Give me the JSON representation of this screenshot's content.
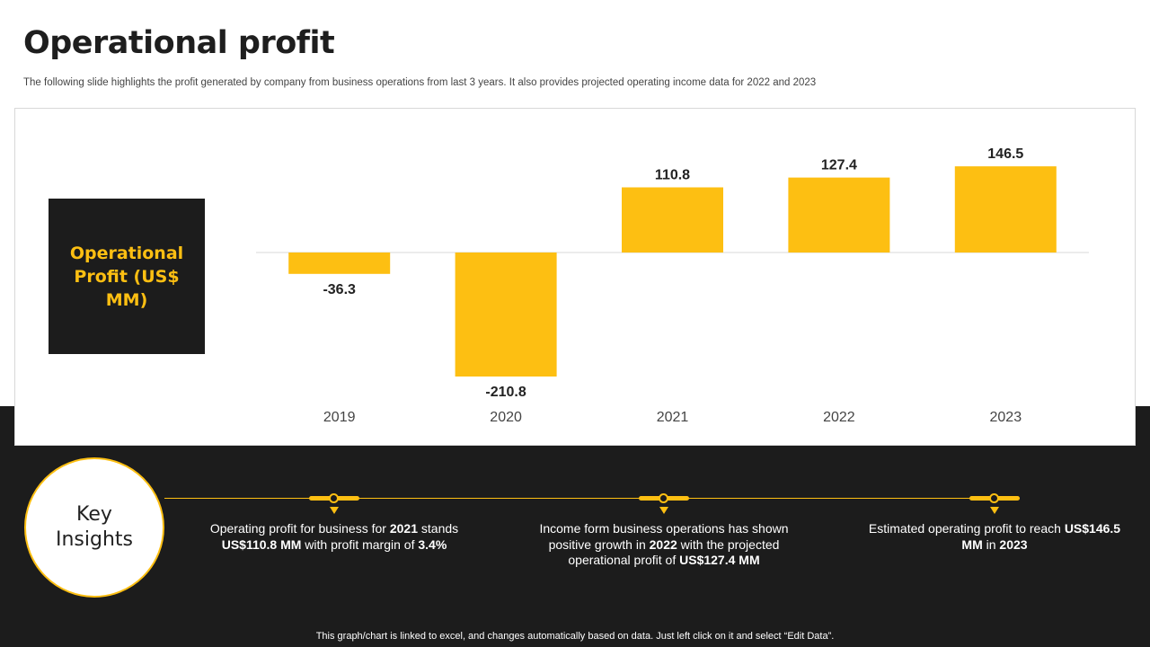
{
  "header": {
    "title": "Operational profit",
    "subtitle": "The following slide highlights the profit generated by  company from business operations from  last 3 years. It also provides projected operating income data for 2022 and 2023"
  },
  "chart_data": {
    "type": "bar",
    "title": "Operational Profit (US$ MM)",
    "categories": [
      "2019",
      "2020",
      "2021",
      "2022",
      "2023"
    ],
    "values": [
      -36.3,
      -210.8,
      110.8,
      127.4,
      146.5
    ],
    "value_labels": [
      "-36.3",
      "-210.8",
      "110.8",
      "127.4",
      "146.5"
    ],
    "xlabel": "",
    "ylabel": "",
    "ylim": [
      -210.8,
      146.5
    ],
    "grid": false,
    "legend": "none",
    "bar_color": "#fdbf12"
  },
  "insights": {
    "heading": "Key Insights",
    "items": [
      {
        "parts": [
          {
            "t": "Operating profit for business for ",
            "b": false
          },
          {
            "t": "2021",
            "b": true
          },
          {
            "t": " stands ",
            "b": false
          },
          {
            "t": "US$110.8 MM",
            "b": true
          },
          {
            "t": " with profit margin of ",
            "b": false
          },
          {
            "t": "3.4%",
            "b": true
          }
        ]
      },
      {
        "parts": [
          {
            "t": "Income form business operations has shown positive growth in ",
            "b": false
          },
          {
            "t": "2022",
            "b": true
          },
          {
            "t": " with the projected operational profit of ",
            "b": false
          },
          {
            "t": "US$127.4 MM",
            "b": true
          }
        ]
      },
      {
        "parts": [
          {
            "t": "Estimated operating profit to reach ",
            "b": false
          },
          {
            "t": "US$146.5 MM",
            "b": true
          },
          {
            "t": " in ",
            "b": false
          },
          {
            "t": "2023",
            "b": true
          }
        ]
      }
    ]
  },
  "footer": {
    "note": "This graph/chart is linked to excel, and changes automatically based on data. Just left click on it and select “Edit Data”."
  },
  "colors": {
    "accent": "#fdbf12",
    "dark": "#1c1c1c"
  }
}
